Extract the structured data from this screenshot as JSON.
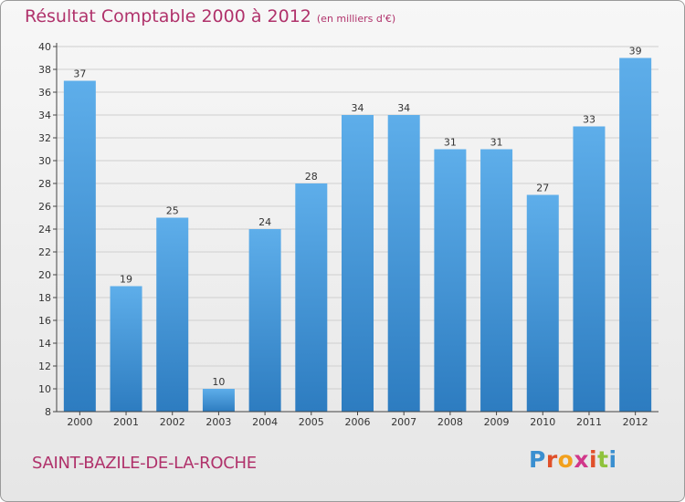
{
  "title": "Résultat Comptable 2000 à 2012",
  "subtitle": "(en milliers d'€)",
  "commune": "SAINT-BAZILE-DE-LA-ROCHE",
  "logo": {
    "letters": [
      "P",
      "r",
      "o",
      "x",
      "i",
      "t",
      "i"
    ],
    "colors": [
      "#3a8fd0",
      "#e0502a",
      "#f2a01d",
      "#d1378a",
      "#e0502a",
      "#8fc23c",
      "#3a8fd0"
    ]
  },
  "colors": {
    "bar_top": "#5eaeea",
    "bar_bottom": "#2d7cc0",
    "grid": "#cfcfcf",
    "axis": "#444444",
    "title": "#b0326b"
  },
  "chart_data": {
    "type": "bar",
    "title": "Résultat Comptable 2000 à 2012",
    "categories": [
      "2000",
      "2001",
      "2002",
      "2003",
      "2004",
      "2005",
      "2006",
      "2007",
      "2008",
      "2009",
      "2010",
      "2011",
      "2012"
    ],
    "values": [
      37,
      19,
      25,
      10,
      24,
      28,
      34,
      34,
      31,
      31,
      27,
      33,
      39
    ],
    "ylim": [
      8,
      40
    ],
    "yticks": [
      8,
      10,
      12,
      14,
      16,
      18,
      20,
      22,
      24,
      26,
      28,
      30,
      32,
      34,
      36,
      38,
      40
    ],
    "xlabel": "",
    "ylabel": "",
    "grid": true,
    "data_labels": true
  }
}
